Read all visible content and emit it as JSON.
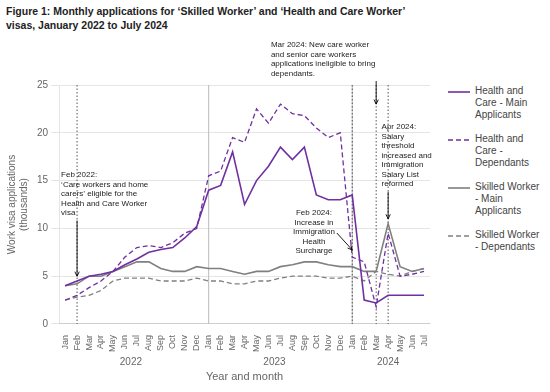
{
  "chart_data": {
    "type": "line",
    "title": "Figure 1: Monthly applications for ‘Skilled Worker’ and ‘Health and Care Worker’\nvisas, January 2022 to July 2024",
    "ylabel": "Work visa applications\n(thousands)",
    "xlabel": "Year and month",
    "categories": [
      "Jan",
      "Feb",
      "Mar",
      "Apr",
      "May",
      "Jun",
      "Jul",
      "Aug",
      "Sep",
      "Oct",
      "Nov",
      "Dec",
      "Jan",
      "Feb",
      "Mar",
      "Apr",
      "May",
      "Jun",
      "Jul",
      "Aug",
      "Sep",
      "Oct",
      "Nov",
      "Dec",
      "Jan",
      "Feb",
      "Mar",
      "Apr",
      "May",
      "Jun",
      "Jul"
    ],
    "year_labels": [
      "2022",
      "2023",
      "2024"
    ],
    "series": [
      {
        "name": "Health and\nCare - Main\nApplicants",
        "color": "#7030a0",
        "line_style": "solid",
        "values": [
          4.0,
          4.5,
          5.0,
          5.2,
          5.5,
          6.2,
          6.8,
          7.5,
          7.8,
          8.0,
          9.0,
          10.2,
          14.0,
          14.5,
          18.0,
          12.5,
          15.0,
          16.5,
          18.5,
          17.2,
          18.5,
          13.5,
          13.0,
          13.0,
          13.5,
          2.5,
          2.2,
          3.0,
          3.0,
          3.0,
          3.0
        ]
      },
      {
        "name": "Health and\nCare -\nDependants",
        "color": "#7030a0",
        "line_style": "dashed",
        "values": [
          2.5,
          3.0,
          3.8,
          4.5,
          5.5,
          7.0,
          8.0,
          8.2,
          8.0,
          8.5,
          9.5,
          10.0,
          15.5,
          16.0,
          19.5,
          19.0,
          22.5,
          21.0,
          23.0,
          22.0,
          21.8,
          20.5,
          19.5,
          20.0,
          7.0,
          6.5,
          1.8,
          9.5,
          5.0,
          5.2,
          5.5
        ]
      },
      {
        "name": "Skilled Worker\n- Main\nApplicants",
        "color": "#808080",
        "line_style": "solid",
        "values": [
          4.0,
          4.2,
          5.0,
          5.0,
          5.5,
          6.0,
          6.5,
          6.5,
          5.8,
          5.5,
          5.5,
          6.0,
          5.8,
          5.8,
          5.5,
          5.2,
          5.5,
          5.5,
          6.0,
          6.2,
          6.5,
          6.5,
          6.2,
          6.0,
          6.0,
          5.5,
          5.5,
          10.5,
          6.0,
          5.5,
          5.8
        ]
      },
      {
        "name": "Skilled Worker\n- Dependants",
        "color": "#808080",
        "line_style": "dashed",
        "values": [
          2.5,
          2.8,
          3.0,
          3.5,
          4.5,
          4.8,
          4.8,
          4.8,
          4.5,
          4.5,
          4.5,
          4.8,
          4.5,
          4.5,
          4.2,
          4.2,
          4.5,
          4.5,
          4.8,
          5.0,
          5.0,
          5.0,
          4.8,
          4.8,
          5.0,
          4.5,
          5.5,
          5.2,
          5.0,
          5.5,
          5.8
        ]
      }
    ],
    "ylim": [
      0,
      25
    ],
    "yticks": [
      0,
      5,
      10,
      15,
      20,
      25
    ],
    "grid": true,
    "legend": "right",
    "annotations": [
      {
        "x": 1,
        "text": "Feb 2022:\n‘Care workers and home\ncarers’ eligible for the\nHealth and Care Worker\nvisa"
      },
      {
        "x": 26,
        "text": "Mar 2024: New care worker\nand senior care workers\napplications ineligible to bring\ndependants."
      },
      {
        "x": 24,
        "text": "Feb 2024:\nIncrease in\nImmigration\nHealth\nSurcharge"
      },
      {
        "x": 27,
        "text": "Apr 2024:\nSalary\nthreshold\nincreased and\nImmigration\nSalary List\nreformed"
      }
    ]
  }
}
